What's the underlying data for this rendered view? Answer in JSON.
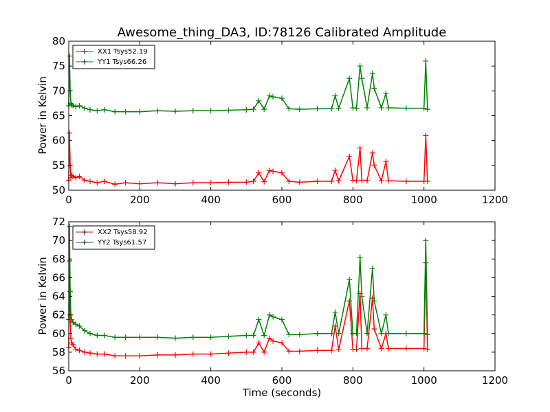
{
  "figure": {
    "title": "Awesome_thing_DA3, ID:78126 Calibrated Amplitude"
  },
  "chart_data": [
    {
      "type": "line",
      "title": "Awesome_thing_DA3, ID:78126 Calibrated Amplitude",
      "xlabel": "",
      "ylabel": "Power in Kelvin",
      "xlim": [
        0,
        1200
      ],
      "ylim": [
        50,
        80
      ],
      "xticks": [
        0,
        200,
        400,
        600,
        800,
        1000,
        1200
      ],
      "yticks": [
        50,
        55,
        60,
        65,
        70,
        75,
        80
      ],
      "legend_position": "top-left",
      "grid": false,
      "series": [
        {
          "name": "XX1 Tsys52.19",
          "color": "#ff0000",
          "marker": "+",
          "x": [
            0,
            2,
            4,
            6,
            8,
            12,
            20,
            30,
            45,
            60,
            80,
            100,
            130,
            160,
            200,
            250,
            300,
            350,
            400,
            450,
            500,
            520,
            535,
            550,
            565,
            575,
            600,
            620,
            650,
            700,
            740,
            750,
            760,
            790,
            800,
            810,
            820,
            825,
            840,
            855,
            860,
            880,
            893,
            900,
            950,
            1000,
            1005,
            1010
          ],
          "y": [
            52.0,
            61.5,
            55.0,
            52.5,
            53.0,
            52.8,
            52.5,
            52.8,
            52.0,
            51.8,
            51.5,
            51.8,
            51.2,
            51.5,
            51.3,
            51.5,
            51.3,
            51.5,
            51.5,
            51.6,
            51.6,
            51.8,
            53.5,
            51.7,
            54.0,
            53.8,
            53.5,
            51.8,
            51.6,
            51.8,
            51.8,
            54.0,
            51.9,
            56.8,
            52.0,
            51.9,
            58.5,
            52.0,
            51.9,
            57.5,
            55.0,
            51.9,
            55.8,
            51.9,
            51.8,
            51.8,
            61.0,
            51.8
          ]
        },
        {
          "name": "YY1 Tsys66.26",
          "color": "#008000",
          "marker": "+",
          "x": [
            0,
            2,
            4,
            6,
            8,
            12,
            20,
            30,
            45,
            60,
            80,
            100,
            130,
            160,
            200,
            250,
            300,
            350,
            400,
            450,
            500,
            520,
            535,
            550,
            565,
            575,
            600,
            620,
            650,
            700,
            740,
            750,
            760,
            790,
            800,
            810,
            820,
            825,
            840,
            855,
            860,
            880,
            893,
            900,
            950,
            1000,
            1005,
            1010
          ],
          "y": [
            67.0,
            77.0,
            70.0,
            67.5,
            67.2,
            67.0,
            66.8,
            67.0,
            66.5,
            66.2,
            66.0,
            66.2,
            65.8,
            65.8,
            65.8,
            66.0,
            65.9,
            66.0,
            66.0,
            66.1,
            66.2,
            66.3,
            68.0,
            66.3,
            69.0,
            68.8,
            68.5,
            66.4,
            66.3,
            66.4,
            66.4,
            69.0,
            66.5,
            72.5,
            66.6,
            66.5,
            75.0,
            72.5,
            66.6,
            73.5,
            70.5,
            66.6,
            69.5,
            66.6,
            66.5,
            66.5,
            76.0,
            66.3
          ]
        }
      ]
    },
    {
      "type": "line",
      "xlabel": "Time (seconds)",
      "ylabel": "Power in Kelvin",
      "xlim": [
        0,
        1200
      ],
      "ylim": [
        56,
        72
      ],
      "xticks": [
        0,
        200,
        400,
        600,
        800,
        1000,
        1200
      ],
      "yticks": [
        56,
        58,
        60,
        62,
        64,
        66,
        68,
        70,
        72
      ],
      "legend_position": "top-left",
      "grid": false,
      "series": [
        {
          "name": "XX2 Tsys58.92",
          "color": "#ff0000",
          "marker": "+",
          "x": [
            0,
            2,
            4,
            6,
            8,
            12,
            20,
            30,
            45,
            60,
            80,
            100,
            130,
            160,
            200,
            250,
            300,
            350,
            400,
            450,
            500,
            520,
            535,
            550,
            565,
            575,
            600,
            620,
            650,
            700,
            740,
            750,
            760,
            790,
            800,
            810,
            820,
            825,
            840,
            855,
            860,
            880,
            893,
            900,
            950,
            1000,
            1005,
            1010
          ],
          "y": [
            58.5,
            67.8,
            62.0,
            59.5,
            59.0,
            58.8,
            58.3,
            58.2,
            58.0,
            57.9,
            57.8,
            57.8,
            57.6,
            57.6,
            57.6,
            57.7,
            57.7,
            57.8,
            57.8,
            57.9,
            58.0,
            58.0,
            59.0,
            58.0,
            59.5,
            59.2,
            59.0,
            58.1,
            58.1,
            58.2,
            58.2,
            60.8,
            58.3,
            63.5,
            58.3,
            58.3,
            64.3,
            58.4,
            58.4,
            63.8,
            60.5,
            58.4,
            60.0,
            58.4,
            58.4,
            58.4,
            67.6,
            58.3
          ]
        },
        {
          "name": "YY2 Tsys61.57",
          "color": "#008000",
          "marker": "+",
          "x": [
            0,
            2,
            4,
            6,
            8,
            12,
            20,
            30,
            45,
            60,
            80,
            100,
            130,
            160,
            200,
            250,
            300,
            350,
            400,
            450,
            500,
            520,
            535,
            550,
            565,
            575,
            600,
            620,
            650,
            700,
            740,
            750,
            760,
            790,
            800,
            810,
            820,
            825,
            840,
            855,
            860,
            880,
            893,
            900,
            950,
            1000,
            1005,
            1010
          ],
          "y": [
            61.5,
            71.5,
            64.5,
            62.0,
            61.5,
            61.2,
            61.0,
            60.8,
            60.3,
            60.0,
            59.8,
            59.8,
            59.6,
            59.6,
            59.6,
            59.6,
            59.5,
            59.6,
            59.6,
            59.7,
            59.8,
            59.8,
            61.5,
            59.8,
            62.0,
            61.8,
            61.5,
            59.9,
            59.9,
            60.0,
            60.0,
            62.3,
            60.0,
            65.8,
            60.0,
            60.0,
            68.2,
            64.0,
            60.0,
            67.0,
            63.5,
            60.0,
            62.0,
            60.0,
            60.0,
            60.0,
            70.0,
            59.9
          ]
        }
      ]
    }
  ]
}
